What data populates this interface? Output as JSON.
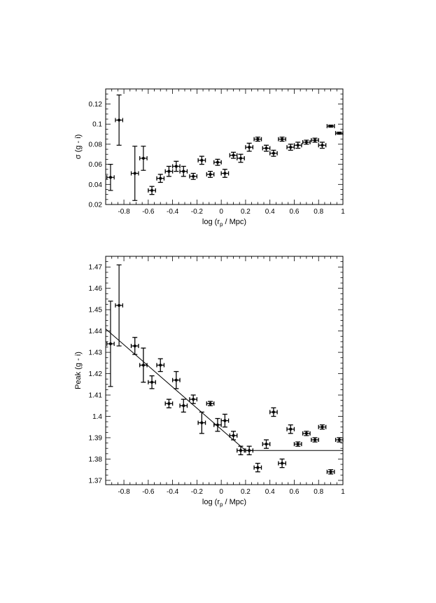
{
  "chart_data": [
    {
      "type": "scatter",
      "xlabel": "log (r",
      "xlabel_sub": "p",
      "xlabel_end": " / Mpc)",
      "ylabel": "σ (g - i)",
      "xlim": [
        -0.95,
        1.0
      ],
      "ylim": [
        0.02,
        0.135
      ],
      "xticks": [
        -0.8,
        -0.6,
        -0.4,
        -0.2,
        0,
        0.2,
        0.4,
        0.6,
        0.8,
        1
      ],
      "xtick_labels": [
        "-0.8",
        "-0.6",
        "-0.4",
        "-0.2",
        "0",
        "0.2",
        "0.4",
        "0.6",
        "0.8",
        "1"
      ],
      "yticks": [
        0.02,
        0.04,
        0.06,
        0.08,
        0.1,
        0.12
      ],
      "ytick_labels": [
        "0.02",
        "0.04",
        "0.06",
        "0.08",
        "0.1",
        "0.12"
      ],
      "points": [
        {
          "x": -0.91,
          "y": 0.047,
          "xerr": 0.03,
          "yerr": 0.013
        },
        {
          "x": -0.84,
          "y": 0.104,
          "xerr": 0.03,
          "yerr": 0.025
        },
        {
          "x": -0.71,
          "y": 0.051,
          "xerr": 0.03,
          "yerr": 0.027
        },
        {
          "x": -0.64,
          "y": 0.066,
          "xerr": 0.03,
          "yerr": 0.012
        },
        {
          "x": -0.57,
          "y": 0.034,
          "xerr": 0.03,
          "yerr": 0.004
        },
        {
          "x": -0.5,
          "y": 0.046,
          "xerr": 0.03,
          "yerr": 0.004
        },
        {
          "x": -0.43,
          "y": 0.053,
          "xerr": 0.03,
          "yerr": 0.005
        },
        {
          "x": -0.37,
          "y": 0.058,
          "xerr": 0.03,
          "yerr": 0.005
        },
        {
          "x": -0.31,
          "y": 0.053,
          "xerr": 0.03,
          "yerr": 0.005
        },
        {
          "x": -0.23,
          "y": 0.048,
          "xerr": 0.03,
          "yerr": 0.003
        },
        {
          "x": -0.16,
          "y": 0.064,
          "xerr": 0.03,
          "yerr": 0.004
        },
        {
          "x": -0.09,
          "y": 0.05,
          "xerr": 0.03,
          "yerr": 0.003
        },
        {
          "x": -0.03,
          "y": 0.062,
          "xerr": 0.03,
          "yerr": 0.003
        },
        {
          "x": 0.03,
          "y": 0.051,
          "xerr": 0.03,
          "yerr": 0.004
        },
        {
          "x": 0.1,
          "y": 0.069,
          "xerr": 0.03,
          "yerr": 0.003
        },
        {
          "x": 0.16,
          "y": 0.066,
          "xerr": 0.03,
          "yerr": 0.004
        },
        {
          "x": 0.23,
          "y": 0.077,
          "xerr": 0.03,
          "yerr": 0.004
        },
        {
          "x": 0.3,
          "y": 0.085,
          "xerr": 0.03,
          "yerr": 0.002
        },
        {
          "x": 0.37,
          "y": 0.076,
          "xerr": 0.03,
          "yerr": 0.003
        },
        {
          "x": 0.43,
          "y": 0.071,
          "xerr": 0.03,
          "yerr": 0.003
        },
        {
          "x": 0.5,
          "y": 0.085,
          "xerr": 0.03,
          "yerr": 0.002
        },
        {
          "x": 0.57,
          "y": 0.077,
          "xerr": 0.03,
          "yerr": 0.003
        },
        {
          "x": 0.63,
          "y": 0.079,
          "xerr": 0.03,
          "yerr": 0.003
        },
        {
          "x": 0.7,
          "y": 0.082,
          "xerr": 0.03,
          "yerr": 0.002
        },
        {
          "x": 0.77,
          "y": 0.084,
          "xerr": 0.03,
          "yerr": 0.002
        },
        {
          "x": 0.83,
          "y": 0.079,
          "xerr": 0.03,
          "yerr": 0.003
        },
        {
          "x": 0.9,
          "y": 0.098,
          "xerr": 0.03,
          "yerr": 0.001
        },
        {
          "x": 0.97,
          "y": 0.091,
          "xerr": 0.03,
          "yerr": 0.001
        }
      ]
    },
    {
      "type": "scatter",
      "xlabel": "log (r",
      "xlabel_sub": "p",
      "xlabel_end": " / Mpc)",
      "ylabel": "Peak (g - i)",
      "xlim": [
        -0.95,
        1.0
      ],
      "ylim": [
        1.368,
        1.475
      ],
      "xticks": [
        -0.8,
        -0.6,
        -0.4,
        -0.2,
        0,
        0.2,
        0.4,
        0.6,
        0.8,
        1
      ],
      "xtick_labels": [
        "-0.8",
        "-0.6",
        "-0.4",
        "-0.2",
        "0",
        "0.2",
        "0.4",
        "0.6",
        "0.8",
        "1"
      ],
      "yticks": [
        1.37,
        1.38,
        1.39,
        1.4,
        1.41,
        1.42,
        1.43,
        1.44,
        1.45,
        1.46,
        1.47
      ],
      "ytick_labels": [
        "1.37",
        "1.38",
        "1.39",
        "1.4",
        "1.41",
        "1.42",
        "1.43",
        "1.44",
        "1.45",
        "1.46",
        "1.47"
      ],
      "fit_line": [
        {
          "x": -0.95,
          "y": 1.441
        },
        {
          "x": 0.2,
          "y": 1.384
        },
        {
          "x": 1.0,
          "y": 1.384
        }
      ],
      "points": [
        {
          "x": -0.91,
          "y": 1.434,
          "xerr": 0.03,
          "yerr": 0.02
        },
        {
          "x": -0.84,
          "y": 1.452,
          "xerr": 0.03,
          "yerr": 0.019
        },
        {
          "x": -0.71,
          "y": 1.433,
          "xerr": 0.03,
          "yerr": 0.004
        },
        {
          "x": -0.64,
          "y": 1.424,
          "xerr": 0.03,
          "yerr": 0.008
        },
        {
          "x": -0.57,
          "y": 1.416,
          "xerr": 0.03,
          "yerr": 0.003
        },
        {
          "x": -0.5,
          "y": 1.424,
          "xerr": 0.03,
          "yerr": 0.003
        },
        {
          "x": -0.43,
          "y": 1.406,
          "xerr": 0.03,
          "yerr": 0.002
        },
        {
          "x": -0.37,
          "y": 1.417,
          "xerr": 0.03,
          "yerr": 0.004
        },
        {
          "x": -0.31,
          "y": 1.405,
          "xerr": 0.03,
          "yerr": 0.003
        },
        {
          "x": -0.23,
          "y": 1.408,
          "xerr": 0.03,
          "yerr": 0.002
        },
        {
          "x": -0.16,
          "y": 1.397,
          "xerr": 0.03,
          "yerr": 0.005
        },
        {
          "x": -0.09,
          "y": 1.406,
          "xerr": 0.03,
          "yerr": 0.001
        },
        {
          "x": -0.03,
          "y": 1.396,
          "xerr": 0.03,
          "yerr": 0.003
        },
        {
          "x": 0.03,
          "y": 1.398,
          "xerr": 0.03,
          "yerr": 0.003
        },
        {
          "x": 0.1,
          "y": 1.391,
          "xerr": 0.03,
          "yerr": 0.002
        },
        {
          "x": 0.16,
          "y": 1.384,
          "xerr": 0.03,
          "yerr": 0.002
        },
        {
          "x": 0.23,
          "y": 1.384,
          "xerr": 0.03,
          "yerr": 0.002
        },
        {
          "x": 0.3,
          "y": 1.376,
          "xerr": 0.03,
          "yerr": 0.002
        },
        {
          "x": 0.37,
          "y": 1.387,
          "xerr": 0.03,
          "yerr": 0.002
        },
        {
          "x": 0.43,
          "y": 1.402,
          "xerr": 0.03,
          "yerr": 0.002
        },
        {
          "x": 0.5,
          "y": 1.378,
          "xerr": 0.03,
          "yerr": 0.002
        },
        {
          "x": 0.57,
          "y": 1.394,
          "xerr": 0.03,
          "yerr": 0.002
        },
        {
          "x": 0.63,
          "y": 1.387,
          "xerr": 0.03,
          "yerr": 0.001
        },
        {
          "x": 0.7,
          "y": 1.392,
          "xerr": 0.03,
          "yerr": 0.001
        },
        {
          "x": 0.77,
          "y": 1.389,
          "xerr": 0.03,
          "yerr": 0.001
        },
        {
          "x": 0.83,
          "y": 1.395,
          "xerr": 0.03,
          "yerr": 0.001
        },
        {
          "x": 0.9,
          "y": 1.374,
          "xerr": 0.03,
          "yerr": 0.001
        },
        {
          "x": 0.97,
          "y": 1.389,
          "xerr": 0.03,
          "yerr": 0.001
        }
      ]
    }
  ]
}
